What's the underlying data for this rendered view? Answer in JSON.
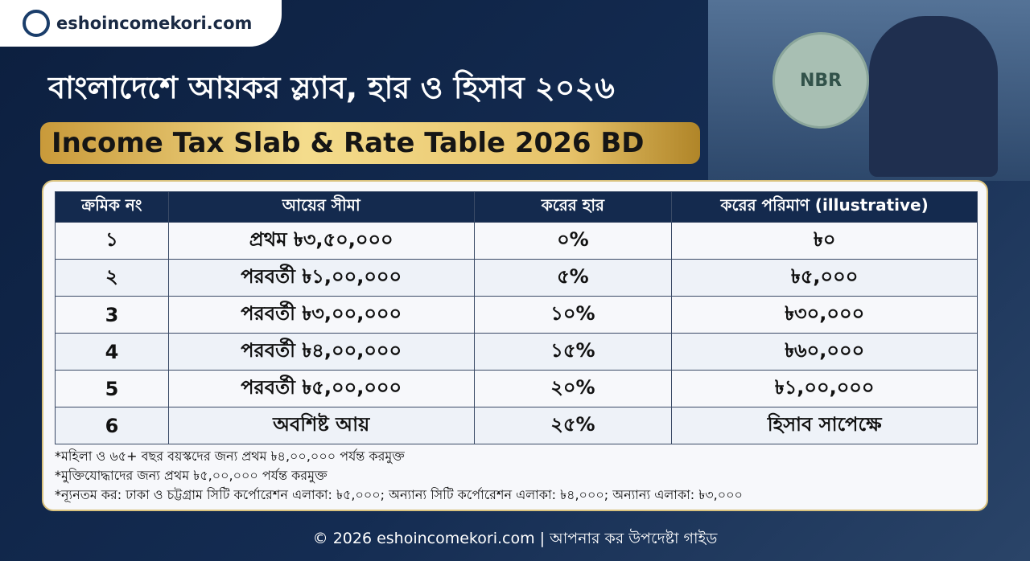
{
  "header": {
    "logo": "eshoincomekori.com",
    "title": "বাংলাদেশে আয়কর স্ল্যাব, হার ও হিসাব ২০২৬",
    "subtitle": "Income Tax Slab & Rate Table 2026 BD",
    "emblem": "NBR"
  },
  "table": {
    "headers": [
      "ক্রমিক নং",
      "আয়ের সীমা",
      "করের হার",
      "করের পরিমাণ (illustrative)"
    ],
    "rows": [
      [
        "১",
        "প্রথম ৳৩,৫০,০০০",
        "০%",
        "৳০"
      ],
      [
        "২",
        "পরবর্তী ৳১,০০,০০০",
        "৫%",
        "৳৫,০০০"
      ],
      [
        "3",
        "পরবর্তী ৳৩,০০,০০০",
        "১০%",
        "৳৩০,০০০"
      ],
      [
        "4",
        "পরবর্তী ৳৪,০০,০০০",
        "১৫%",
        "৳৬০,০০০"
      ],
      [
        "5",
        "পরবর্তী ৳৫,০০,০০০",
        "২০%",
        "৳১,০০,০০০"
      ],
      [
        "6",
        "অবশিষ্ট আয়",
        "২৫%",
        "হিসাব সাপেক্ষে"
      ]
    ]
  },
  "notes": [
    "*মহিলা ও ৬৫+ বছর বয়স্কদের জন্য প্রথম ৳৪,০০,০০০ পর্যন্ত করমুক্ত",
    "*মুক্তিযোদ্ধাদের জন্য প্রথম ৳৫,০০,০০০ পর্যন্ত করমুক্ত",
    "*ন্যূনতম কর: ঢাকা ও চট্টগ্রাম সিটি কর্পোরেশন এলাকা: ৳৫,০০০; অন্যান্য সিটি কর্পোরেশন এলাকা: ৳৪,০০০; অন্যান্য এলাকা: ৳৩,০০০"
  ],
  "footer": "© 2026 eshoincomekori.com | আপনার কর উপদেষ্টা গাইড"
}
